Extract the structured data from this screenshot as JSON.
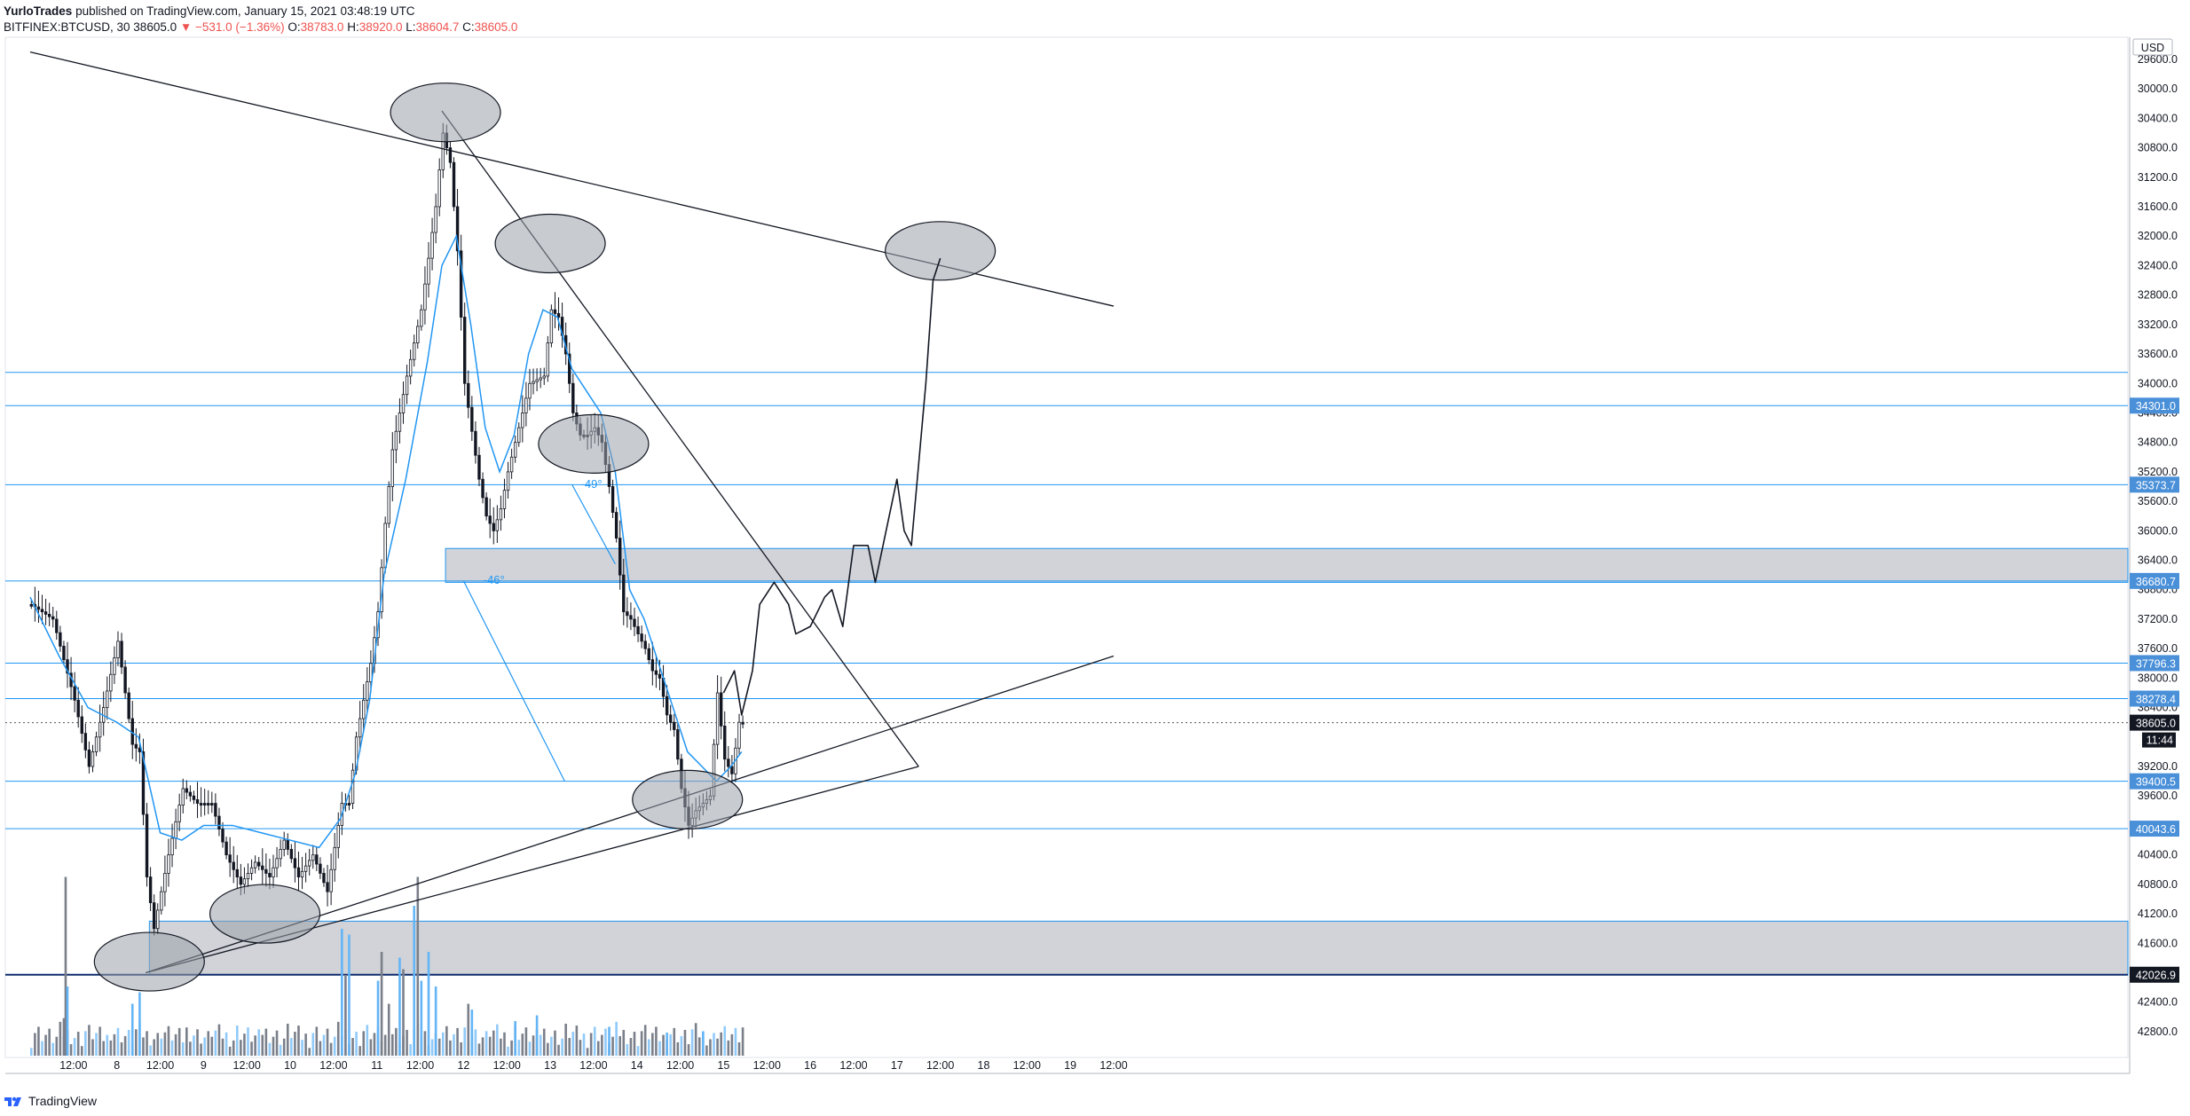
{
  "header": {
    "author": "YurloTrades",
    "publish_text": "published on TradingView.com, January 15, 2021 03:48:19 UTC",
    "symbol": "BITFINEX:BTCUSD, 30",
    "last": "38605.0",
    "change": "−531.0 (−1.36%)",
    "o_label": "O:",
    "o_value": "38783.0",
    "h_label": "H:",
    "h_value": "38920.0",
    "l_label": "L:",
    "l_value": "38604.7",
    "c_label": "C:",
    "c_value": "38605.0"
  },
  "footer": {
    "brand": "TradingView"
  },
  "colors": {
    "accent": "#2196f3",
    "up": "#131722",
    "down": "#131722",
    "zone": "#b2b5be",
    "red": "#ef5350",
    "grid_line": "#4a90d9"
  },
  "chart_data": {
    "type": "line",
    "title": "BITFINEX:BTCUSD, 30",
    "y_axis": {
      "currency": "USD",
      "range": [
        29300,
        43150
      ],
      "ticks": [
        "29600.0",
        "30000.0",
        "30400.0",
        "30800.0",
        "31200.0",
        "31600.0",
        "32000.0",
        "32400.0",
        "32800.0",
        "33200.0",
        "33600.0",
        "34000.0",
        "34400.0",
        "34800.0",
        "35200.0",
        "35600.0",
        "36000.0",
        "36400.0",
        "36800.0",
        "37200.0",
        "37600.0",
        "38000.0",
        "38400.0",
        "39200.0",
        "39600.0",
        "40000.0",
        "40400.0",
        "40800.0",
        "41200.0",
        "41600.0",
        "42000.0",
        "42400.0",
        "42800.0"
      ]
    },
    "x_axis": {
      "ticks": [
        {
          "label": "12:00",
          "h": 12
        },
        {
          "label": "8",
          "h": 24
        },
        {
          "label": "12:00",
          "h": 36
        },
        {
          "label": "9",
          "h": 48
        },
        {
          "label": "12:00",
          "h": 60
        },
        {
          "label": "10",
          "h": 72
        },
        {
          "label": "12:00",
          "h": 84
        },
        {
          "label": "11",
          "h": 96
        },
        {
          "label": "12:00",
          "h": 108
        },
        {
          "label": "12",
          "h": 120
        },
        {
          "label": "12:00",
          "h": 132
        },
        {
          "label": "13",
          "h": 144
        },
        {
          "label": "12:00",
          "h": 156
        },
        {
          "label": "14",
          "h": 168
        },
        {
          "label": "12:00",
          "h": 180
        },
        {
          "label": "15",
          "h": 192
        },
        {
          "label": "12:00",
          "h": 204
        },
        {
          "label": "16",
          "h": 216
        },
        {
          "label": "12:00",
          "h": 228
        },
        {
          "label": "17",
          "h": 240
        },
        {
          "label": "12:00",
          "h": 252
        },
        {
          "label": "18",
          "h": 264
        },
        {
          "label": "12:00",
          "h": 276
        },
        {
          "label": "19",
          "h": 288
        },
        {
          "label": "12:00",
          "h": 300
        }
      ]
    },
    "price_path": [
      [
        0,
        37000
      ],
      [
        6,
        37200
      ],
      [
        12,
        38300
      ],
      [
        16,
        39200
      ],
      [
        20,
        38400
      ],
      [
        24,
        37500
      ],
      [
        28,
        38900
      ],
      [
        30,
        39000
      ],
      [
        32,
        40700
      ],
      [
        34,
        41400
      ],
      [
        38,
        40400
      ],
      [
        42,
        39500
      ],
      [
        46,
        39700
      ],
      [
        50,
        39700
      ],
      [
        54,
        40400
      ],
      [
        58,
        40800
      ],
      [
        62,
        40500
      ],
      [
        66,
        40700
      ],
      [
        70,
        40200
      ],
      [
        74,
        40700
      ],
      [
        78,
        40400
      ],
      [
        82,
        40900
      ],
      [
        86,
        39700
      ],
      [
        88,
        39700
      ],
      [
        90,
        38800
      ],
      [
        94,
        37800
      ],
      [
        96,
        37100
      ],
      [
        98,
        35900
      ],
      [
        100,
        34900
      ],
      [
        104,
        33900
      ],
      [
        108,
        33000
      ],
      [
        112,
        31600
      ],
      [
        114,
        30600
      ],
      [
        116,
        31000
      ],
      [
        118,
        32200
      ],
      [
        120,
        34000
      ],
      [
        124,
        35300
      ],
      [
        126,
        35800
      ],
      [
        128,
        36000
      ],
      [
        130,
        35700
      ],
      [
        132,
        35200
      ],
      [
        134,
        34800
      ],
      [
        138,
        34000
      ],
      [
        142,
        33900
      ],
      [
        144,
        33000
      ],
      [
        146,
        33100
      ],
      [
        148,
        33600
      ],
      [
        150,
        34400
      ],
      [
        152,
        34700
      ],
      [
        154,
        34700
      ],
      [
        156,
        34600
      ],
      [
        158,
        34800
      ],
      [
        160,
        35400
      ],
      [
        162,
        36100
      ],
      [
        164,
        37100
      ],
      [
        166,
        37200
      ],
      [
        168,
        37400
      ],
      [
        170,
        37600
      ],
      [
        172,
        37900
      ],
      [
        174,
        38000
      ],
      [
        176,
        38500
      ],
      [
        178,
        38700
      ],
      [
        180,
        39500
      ],
      [
        182,
        40000
      ],
      [
        184,
        39800
      ],
      [
        186,
        39700
      ],
      [
        188,
        39600
      ],
      [
        190,
        38200
      ],
      [
        192,
        39100
      ],
      [
        194,
        39300
      ],
      [
        196,
        38600
      ],
      [
        197,
        38605
      ]
    ],
    "ema_path": [
      [
        0,
        36900
      ],
      [
        8,
        37700
      ],
      [
        16,
        38400
      ],
      [
        24,
        38600
      ],
      [
        30,
        38800
      ],
      [
        36,
        40100
      ],
      [
        42,
        40200
      ],
      [
        48,
        40000
      ],
      [
        56,
        40000
      ],
      [
        64,
        40100
      ],
      [
        72,
        40200
      ],
      [
        80,
        40300
      ],
      [
        86,
        39900
      ],
      [
        90,
        39300
      ],
      [
        94,
        38300
      ],
      [
        98,
        36600
      ],
      [
        104,
        35300
      ],
      [
        110,
        33700
      ],
      [
        114,
        32400
      ],
      [
        118,
        32000
      ],
      [
        122,
        33200
      ],
      [
        126,
        34600
      ],
      [
        130,
        35200
      ],
      [
        134,
        34700
      ],
      [
        138,
        33600
      ],
      [
        142,
        33000
      ],
      [
        146,
        33100
      ],
      [
        150,
        33800
      ],
      [
        154,
        34100
      ],
      [
        158,
        34400
      ],
      [
        162,
        35200
      ],
      [
        166,
        36800
      ],
      [
        170,
        37200
      ],
      [
        174,
        37800
      ],
      [
        178,
        38400
      ],
      [
        182,
        39000
      ],
      [
        186,
        39200
      ],
      [
        190,
        39400
      ],
      [
        194,
        39200
      ],
      [
        197,
        39000
      ]
    ],
    "volume_bars": [
      {
        "h": 9,
        "v": 650
      },
      {
        "h": 9.5,
        "v": 3100
      },
      {
        "h": 10,
        "v": 1200
      },
      {
        "h": 28,
        "v": 900
      },
      {
        "h": 30,
        "v": 1100
      },
      {
        "h": 86,
        "v": 2200
      },
      {
        "h": 87,
        "v": 1400
      },
      {
        "h": 88,
        "v": 2100
      },
      {
        "h": 96,
        "v": 1300
      },
      {
        "h": 97,
        "v": 1800
      },
      {
        "h": 99,
        "v": 900
      },
      {
        "h": 102,
        "v": 1700
      },
      {
        "h": 103,
        "v": 1500
      },
      {
        "h": 106,
        "v": 2600
      },
      {
        "h": 107,
        "v": 3100
      },
      {
        "h": 108,
        "v": 1300
      },
      {
        "h": 110,
        "v": 1800
      },
      {
        "h": 112,
        "v": 1200
      },
      {
        "h": 121,
        "v": 900
      },
      {
        "h": 122,
        "v": 800
      },
      {
        "h": 134,
        "v": 600
      },
      {
        "h": 140,
        "v": 700
      },
      {
        "h": 160,
        "v": 500
      },
      {
        "h": 176,
        "v": 400
      },
      {
        "h": 186,
        "v": 420
      }
    ],
    "volume_max": 4000,
    "horizontal_levels": [
      {
        "price": "34301.0",
        "value": 34301.0,
        "shown": true
      },
      {
        "price": "35373.7",
        "value": 35373.7,
        "shown": true
      },
      {
        "price": "36680.7",
        "value": 36680.7,
        "shown": true
      },
      {
        "price": "37796.3",
        "value": 37796.3,
        "shown": true
      },
      {
        "price": "38278.4",
        "value": 38278.4,
        "shown": true
      },
      {
        "price": "39400.5",
        "value": 39400.5,
        "shown": true
      },
      {
        "price": "40043.6",
        "value": 40043.6,
        "shown": true
      },
      {
        "price": "42026.9",
        "value": 42026.9,
        "shown": true,
        "dark": true
      },
      {
        "price": "",
        "value": 33850,
        "shown": false
      }
    ],
    "current_price": {
      "label": "38605.0",
      "value": 38605.0,
      "countdown": "11:44"
    },
    "zones": [
      {
        "from": 36240,
        "to": 36700
      },
      {
        "from": 41300,
        "to": 42030
      }
    ],
    "trendlines": [
      {
        "p1": [
          0,
          29500
        ],
        "p2": [
          300,
          32950
        ]
      },
      {
        "p1": [
          114,
          30300
        ],
        "p2": [
          246,
          39200
        ]
      },
      {
        "p1": [
          32,
          42000
        ],
        "p2": [
          300,
          37700
        ]
      },
      {
        "p1": [
          32,
          42000
        ],
        "p2": [
          246,
          39200
        ]
      }
    ],
    "ellipses": [
      {
        "h": 33,
        "p": 41850
      },
      {
        "h": 65,
        "p": 41200
      },
      {
        "h": 115,
        "p": 30320
      },
      {
        "h": 144,
        "p": 32100
      },
      {
        "h": 156,
        "p": 34820
      },
      {
        "h": 182,
        "p": 39650
      },
      {
        "h": 252,
        "p": 32200
      }
    ],
    "angle_labels": [
      {
        "text": "-46°",
        "h": 124,
        "p": 36670
      },
      {
        "text": "-49°",
        "h": 151,
        "p": 35370
      }
    ],
    "projection_path": [
      [
        192,
        38200
      ],
      [
        195,
        37900
      ],
      [
        197,
        38500
      ],
      [
        200,
        37900
      ],
      [
        202,
        37000
      ],
      [
        206,
        36700
      ],
      [
        210,
        37000
      ],
      [
        212,
        37400
      ],
      [
        216,
        37300
      ],
      [
        220,
        36900
      ],
      [
        222,
        36800
      ],
      [
        225,
        37300
      ],
      [
        228,
        36200
      ],
      [
        232,
        36200
      ],
      [
        234,
        36700
      ],
      [
        237,
        36000
      ],
      [
        240,
        35300
      ],
      [
        242,
        36000
      ],
      [
        244,
        36200
      ],
      [
        248,
        34000
      ],
      [
        250,
        32600
      ],
      [
        252,
        32300
      ]
    ]
  }
}
